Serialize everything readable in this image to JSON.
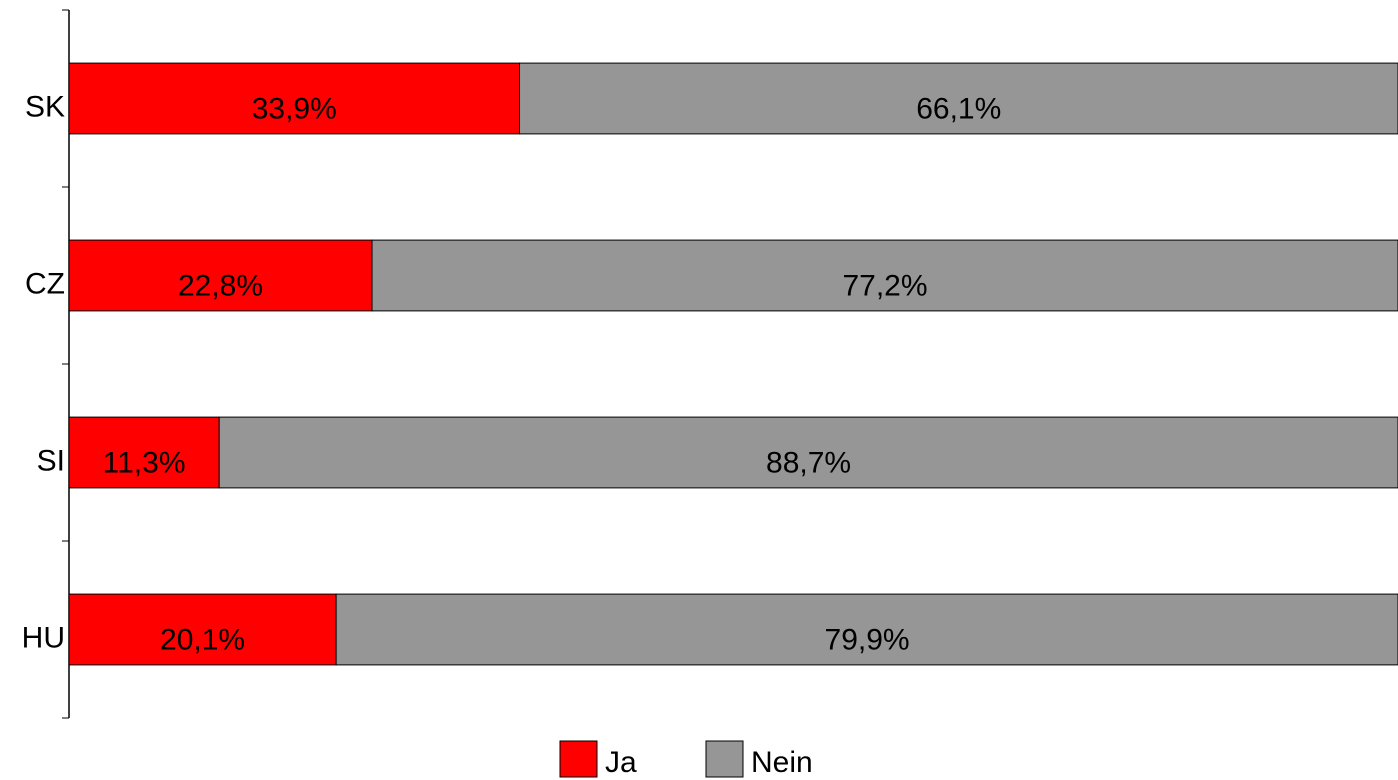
{
  "chart_data": {
    "type": "stacked-bar-horizontal",
    "categories": [
      "SK",
      "CZ",
      "SI",
      "HU"
    ],
    "series": [
      {
        "name": "Ja",
        "color": "#ff0000",
        "values": [
          33.9,
          22.8,
          11.3,
          20.1
        ],
        "value_labels": [
          "33,9%",
          "22,8%",
          "11,3%",
          "20,1%"
        ]
      },
      {
        "name": "Nein",
        "color": "#969696",
        "values": [
          66.1,
          77.2,
          88.7,
          79.9
        ],
        "value_labels": [
          "66,1%",
          "77,2%",
          "88,7%",
          "79,9%"
        ]
      }
    ],
    "xlim": [
      0,
      100
    ],
    "legend": "bottom"
  }
}
